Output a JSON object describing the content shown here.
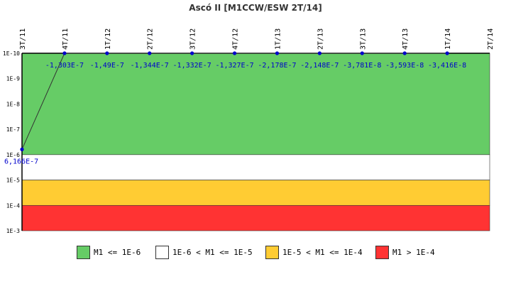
{
  "chart_data": {
    "type": "line",
    "title": "Ascó II [M1CCW/ESW 2T/14]",
    "categories": [
      "3T/11",
      "4T/11",
      "1T/12",
      "2T/12",
      "3T/12",
      "4T/12",
      "1T/13",
      "2T/13",
      "3T/13",
      "4T/13",
      "1T/14",
      "2T/14"
    ],
    "y_scale": "log-reversed",
    "ylim": [
      "1E-10",
      "1E-3"
    ],
    "y_ticks": [
      "1E-10",
      "1E-9",
      "1E-8",
      "1E-7",
      "1E-6",
      "1E-5",
      "1E-4",
      "1E-3"
    ],
    "series": [
      {
        "values": [
          6.166e-07,
          -1.303e-07,
          -1.49e-07,
          -1.344e-07,
          -1.332e-07,
          -1.327e-07,
          -2.178e-07,
          -2.148e-07,
          -3.781e-08,
          -3.593e-08,
          -3.416e-08,
          null
        ],
        "data_labels": [
          "6,166E-7",
          "-1,303E-7",
          "-1,49E-7",
          "-1,344E-7",
          "-1,332E-7",
          "-1,327E-7",
          "-2,178E-7",
          "-2,148E-7",
          "-3,781E-8",
          "-3,593E-8",
          "-3,416E-8",
          ""
        ]
      }
    ],
    "bands": [
      {
        "from": 1e-10,
        "to": 1e-06,
        "color": "#66cc66",
        "label": "M1 <= 1E-6"
      },
      {
        "from": 1e-06,
        "to": 1e-05,
        "color": "#ffffff",
        "label": "1E-6 < M1 <= 1E-5"
      },
      {
        "from": 1e-05,
        "to": 0.0001,
        "color": "#ffcc33",
        "label": "1E-5 < M1 <= 1E-4"
      },
      {
        "from": 0.0001,
        "to": 0.001,
        "color": "#ff3333",
        "label": "M1 > 1E-4"
      }
    ],
    "grid": false,
    "legend_position": "bottom"
  }
}
